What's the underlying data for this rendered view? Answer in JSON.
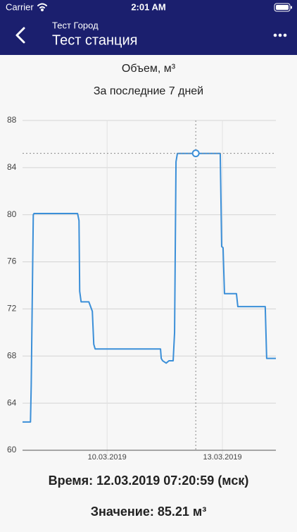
{
  "status_bar": {
    "carrier": "Carrier",
    "time": "2:01 AM"
  },
  "header": {
    "subtitle": "Тест Город",
    "title": "Тест станция"
  },
  "chart_data": {
    "type": "line",
    "title": "Объем, м³",
    "subtitle": "За последние 7 дней",
    "color": "#3b8fd8",
    "grid": true,
    "xlim": [
      7.8,
      14.39
    ],
    "xticks": [
      {
        "value": 10,
        "label": "10.03.2019"
      },
      {
        "value": 13,
        "label": "13.03.2019"
      }
    ],
    "ylim": [
      60,
      88
    ],
    "yticks": [
      60,
      64,
      68,
      72,
      76,
      80,
      84,
      88
    ],
    "x": [
      7.8,
      8.007,
      8.026,
      8.08,
      8.099,
      9.232,
      9.269,
      9.287,
      9.324,
      9.525,
      9.616,
      9.653,
      9.689,
      11.389,
      11.408,
      11.444,
      11.536,
      11.609,
      11.718,
      11.755,
      11.792,
      11.828,
      12.943,
      12.98,
      13.016,
      13.053,
      13.364,
      13.4,
      14.113,
      14.15,
      14.39
    ],
    "values": [
      62.4,
      62.4,
      65.5,
      80,
      80.1,
      80.1,
      79.5,
      73.5,
      72.6,
      72.6,
      71.8,
      69,
      68.6,
      68.6,
      67.8,
      67.6,
      67.4,
      67.6,
      67.6,
      70,
      84.5,
      85.2,
      85.2,
      77.3,
      77.2,
      73.3,
      73.3,
      72.2,
      72.2,
      67.8,
      67.8
    ],
    "marker": {
      "x": 12.306,
      "y": 85.21,
      "time_label": "Время: 12.03.2019 07:20:59 (мск)",
      "value_label": "Значение: 85.21 м³"
    }
  }
}
